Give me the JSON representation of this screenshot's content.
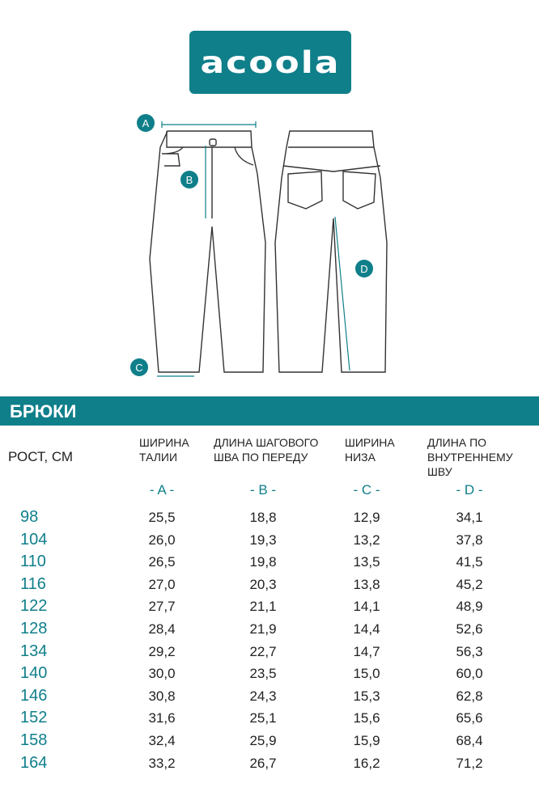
{
  "logo": {
    "text": "acoola"
  },
  "diagram_labels": {
    "a": "A",
    "b": "B",
    "c": "C",
    "d": "D"
  },
  "band": {
    "title": "БРЮКИ"
  },
  "table": {
    "height_header": "РОСТ, СМ",
    "columns": [
      {
        "header": "ШИРИНА\nТАЛИИ",
        "letter": "- A -"
      },
      {
        "header": "ДЛИНА ШАГОВОГО\nШВА ПО ПЕРЕДУ",
        "letter": "- B -"
      },
      {
        "header": "ШИРИНА\nНИЗА",
        "letter": "- C -"
      },
      {
        "header": "ДЛИНА ПО\nВНУТРЕННЕМУ ШВУ",
        "letter": "- D -"
      }
    ],
    "rows": [
      {
        "height": "98",
        "a": "25,5",
        "b": "18,8",
        "c": "12,9",
        "d": "34,1"
      },
      {
        "height": "104",
        "a": "26,0",
        "b": "19,3",
        "c": "13,2",
        "d": "37,8"
      },
      {
        "height": "110",
        "a": "26,5",
        "b": "19,8",
        "c": "13,5",
        "d": "41,5"
      },
      {
        "height": "116",
        "a": "27,0",
        "b": "20,3",
        "c": "13,8",
        "d": "45,2"
      },
      {
        "height": "122",
        "a": "27,7",
        "b": "21,1",
        "c": "14,1",
        "d": "48,9"
      },
      {
        "height": "128",
        "a": "28,4",
        "b": "21,9",
        "c": "14,4",
        "d": "52,6"
      },
      {
        "height": "134",
        "a": "29,2",
        "b": "22,7",
        "c": "14,7",
        "d": "56,3"
      },
      {
        "height": "140",
        "a": "30,0",
        "b": "23,5",
        "c": "15,0",
        "d": "60,0"
      },
      {
        "height": "146",
        "a": "30,8",
        "b": "24,3",
        "c": "15,3",
        "d": "62,8"
      },
      {
        "height": "152",
        "a": "31,6",
        "b": "25,1",
        "c": "15,6",
        "d": "65,6"
      },
      {
        "height": "158",
        "a": "32,4",
        "b": "25,9",
        "c": "15,9",
        "d": "68,4"
      },
      {
        "height": "164",
        "a": "33,2",
        "b": "26,7",
        "c": "16,2",
        "d": "71,2"
      }
    ]
  },
  "colors": {
    "accent": "#0f7f8a"
  }
}
